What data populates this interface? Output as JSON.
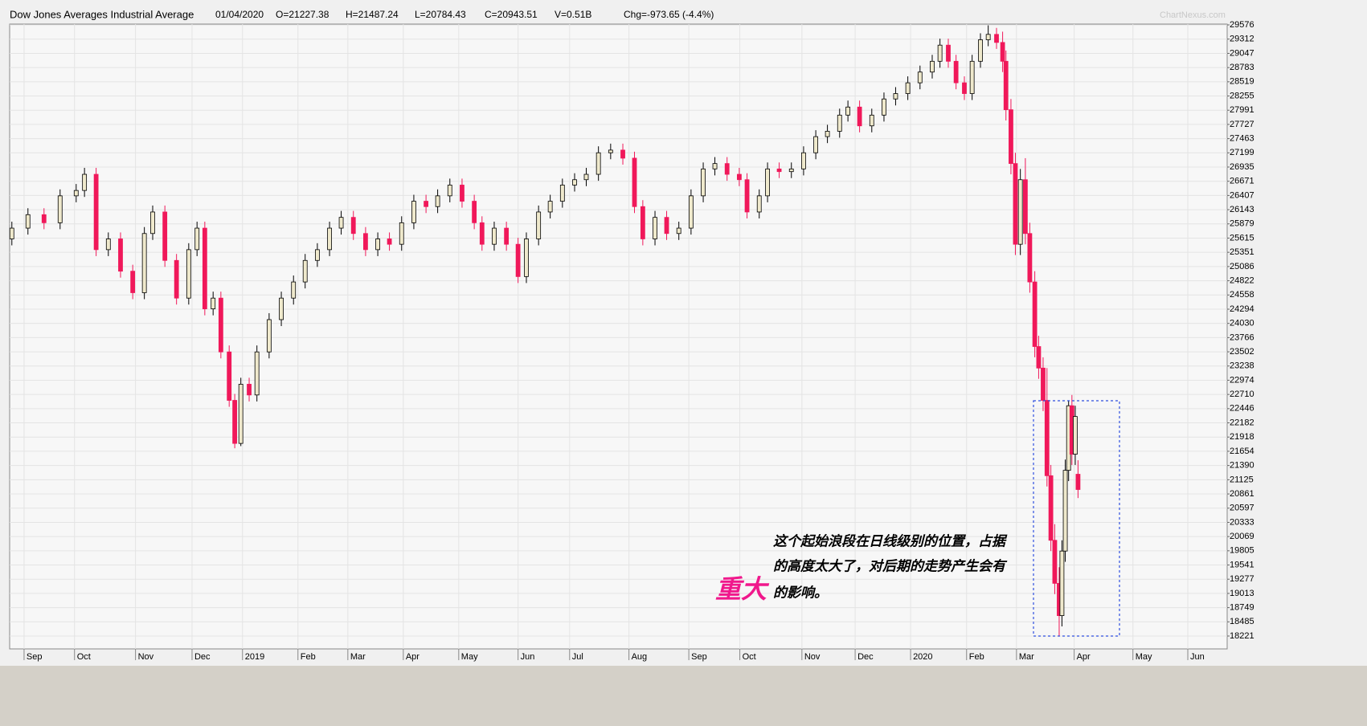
{
  "header": {
    "title": "Dow Jones Averages Industrial Average",
    "date": "01/04/2020",
    "open": "O=21227.38",
    "high": "H=21487.24",
    "low": "L=20784.43",
    "close": "C=20943.51",
    "volume": "V=0.51B",
    "change": "Chg=-973.65 (-4.4%)",
    "watermark": "ChartNexus.com"
  },
  "annotation": {
    "lines": [
      "这个起始浪段在日线级别的位置，占据",
      "的高度太大了，对后期的走势产生会有",
      "的影响。"
    ],
    "emphasis": "重大"
  },
  "chart_data": {
    "type": "candlestick",
    "up_color": "#efe9cc",
    "down_color": "#f0185a",
    "grid": true,
    "xlim": [
      -0.26,
      21.7
    ],
    "ylim": [
      17982,
      29591
    ],
    "xticks": [
      {
        "value": 0,
        "label": "Sep"
      },
      {
        "value": 0.91,
        "label": "Oct"
      },
      {
        "value": 2.01,
        "label": "Nov"
      },
      {
        "value": 3.03,
        "label": "Dec"
      },
      {
        "value": 3.94,
        "label": "2019"
      },
      {
        "value": 4.94,
        "label": "Feb"
      },
      {
        "value": 5.84,
        "label": "Mar"
      },
      {
        "value": 6.84,
        "label": "Apr"
      },
      {
        "value": 7.84,
        "label": "May"
      },
      {
        "value": 8.91,
        "label": "Jun"
      },
      {
        "value": 9.84,
        "label": "Jul"
      },
      {
        "value": 10.91,
        "label": "Aug"
      },
      {
        "value": 11.99,
        "label": "Sep"
      },
      {
        "value": 12.91,
        "label": "Oct"
      },
      {
        "value": 14.03,
        "label": "Nov"
      },
      {
        "value": 14.99,
        "label": "Dec"
      },
      {
        "value": 15.99,
        "label": "2020"
      },
      {
        "value": 17.0,
        "label": "Feb"
      },
      {
        "value": 17.9,
        "label": "Mar"
      },
      {
        "value": 18.94,
        "label": "Apr"
      },
      {
        "value": 20.0,
        "label": "May"
      },
      {
        "value": 20.99,
        "label": "Jun"
      }
    ],
    "yticks": [
      29576,
      29312,
      29047,
      28783,
      28519,
      28255,
      27991,
      27727,
      27463,
      27199,
      26935,
      26671,
      26407,
      26143,
      25879,
      25615,
      25351,
      25086,
      24822,
      24558,
      24294,
      24030,
      23766,
      23502,
      23238,
      22974,
      22710,
      22446,
      22182,
      21918,
      21654,
      21390,
      21125,
      20861,
      20597,
      20333,
      20069,
      19805,
      19541,
      19277,
      19013,
      18749,
      18485,
      18221
    ],
    "x": [
      -0.22,
      0.07,
      0.36,
      0.65,
      0.94,
      1.09,
      1.3,
      1.52,
      1.74,
      1.96,
      2.17,
      2.32,
      2.54,
      2.75,
      2.97,
      3.12,
      3.26,
      3.41,
      3.55,
      3.7,
      3.8,
      3.91,
      4.06,
      4.2,
      4.42,
      4.64,
      4.86,
      5.07,
      5.29,
      5.51,
      5.72,
      5.94,
      6.16,
      6.38,
      6.59,
      6.81,
      7.03,
      7.25,
      7.46,
      7.68,
      7.9,
      8.12,
      8.26,
      8.48,
      8.7,
      8.91,
      9.06,
      9.28,
      9.49,
      9.71,
      9.93,
      10.14,
      10.36,
      10.58,
      10.8,
      11.01,
      11.16,
      11.38,
      11.59,
      11.81,
      12.03,
      12.25,
      12.46,
      12.68,
      12.9,
      13.04,
      13.26,
      13.41,
      13.62,
      13.84,
      14.06,
      14.28,
      14.49,
      14.71,
      14.86,
      15.07,
      15.29,
      15.51,
      15.72,
      15.94,
      16.16,
      16.38,
      16.52,
      16.67,
      16.81,
      16.96,
      17.1,
      17.25,
      17.39,
      17.54,
      17.65,
      17.71,
      17.8,
      17.88,
      17.97,
      18.06,
      18.14,
      18.23,
      18.3,
      18.38,
      18.45,
      18.52,
      18.59,
      18.67,
      18.72,
      18.78,
      18.84,
      18.9,
      18.96,
      19.01
    ],
    "open": [
      25600,
      25800,
      26050,
      25900,
      26400,
      26500,
      26800,
      25400,
      25600,
      25000,
      24600,
      25700,
      26100,
      25200,
      24500,
      25400,
      25800,
      24300,
      24500,
      23500,
      22600,
      21800,
      22900,
      22700,
      23500,
      24100,
      24500,
      24800,
      25200,
      25400,
      25800,
      26000,
      25700,
      25400,
      25600,
      25500,
      25900,
      26300,
      26200,
      26400,
      26600,
      26300,
      25900,
      25500,
      25800,
      25500,
      24900,
      25600,
      26100,
      26300,
      26600,
      26700,
      26800,
      27200,
      27250,
      27100,
      26200,
      25600,
      26000,
      25700,
      25800,
      26400,
      26900,
      27000,
      26800,
      26700,
      26100,
      26400,
      26900,
      26850,
      26900,
      27200,
      27500,
      27600,
      27900,
      28050,
      27700,
      27900,
      28200,
      28300,
      28500,
      28700,
      28900,
      29200,
      28900,
      28500,
      28300,
      28900,
      29300,
      29400,
      29250,
      28900,
      28000,
      27000,
      25500,
      26700,
      25700,
      24800,
      23600,
      23200,
      22600,
      21200,
      20000,
      19200,
      18600,
      19800,
      21300,
      22500,
      21600,
      21227.38
    ],
    "high": [
      25920,
      26170,
      26170,
      26520,
      26620,
      26920,
      26920,
      25720,
      25720,
      25120,
      25820,
      26220,
      26220,
      25320,
      25520,
      25920,
      25920,
      24620,
      24620,
      23620,
      22720,
      23020,
      23020,
      23620,
      24220,
      24620,
      24920,
      25320,
      25520,
      25920,
      26120,
      26120,
      25820,
      25720,
      25720,
      26020,
      26420,
      26420,
      26520,
      26720,
      26720,
      26420,
      26020,
      25920,
      25920,
      25620,
      25720,
      26220,
      26420,
      26720,
      26820,
      26920,
      27320,
      27370,
      27370,
      27220,
      26320,
      26120,
      26120,
      25920,
      26520,
      27020,
      27120,
      27120,
      26920,
      26820,
      26520,
      27020,
      27020,
      27020,
      27320,
      27620,
      27720,
      28020,
      28170,
      28170,
      28020,
      28320,
      28420,
      28620,
      28820,
      29020,
      29320,
      29320,
      29020,
      28620,
      29020,
      29420,
      29568,
      29520,
      29450,
      29100,
      28200,
      27200,
      26900,
      27100,
      25900,
      25000,
      23800,
      23400,
      23200,
      21400,
      20300,
      19500,
      20000,
      21500,
      22600,
      22700,
      22500,
      21487.24
    ],
    "low": [
      25480,
      25680,
      25780,
      25780,
      26280,
      26380,
      25280,
      25280,
      24880,
      24480,
      24480,
      25580,
      25080,
      24380,
      24380,
      25280,
      24180,
      24180,
      23380,
      22480,
      21710,
      21750,
      22580,
      22580,
      23380,
      23980,
      24380,
      24680,
      25080,
      25280,
      25680,
      25580,
      25280,
      25280,
      25380,
      25380,
      25780,
      26080,
      26080,
      26280,
      26180,
      25780,
      25380,
      25380,
      25380,
      24780,
      24780,
      25480,
      25980,
      26180,
      26480,
      26580,
      26680,
      27080,
      26980,
      26080,
      25480,
      25480,
      25580,
      25580,
      25680,
      26280,
      26780,
      26680,
      26580,
      25980,
      25980,
      26280,
      26730,
      26730,
      26780,
      27080,
      27380,
      27480,
      27780,
      27580,
      27580,
      27780,
      28080,
      28180,
      28380,
      28580,
      28780,
      28780,
      28380,
      28180,
      28180,
      28780,
      29180,
      29130,
      28700,
      27800,
      26800,
      25300,
      25300,
      25500,
      24600,
      23400,
      23000,
      22400,
      21000,
      19800,
      19000,
      18213,
      18400,
      19600,
      21100,
      21400,
      21400,
      20784.43
    ],
    "close": [
      25800,
      26050,
      25900,
      26400,
      26500,
      26800,
      25400,
      25600,
      25000,
      24600,
      25700,
      26100,
      25200,
      24500,
      25400,
      25800,
      24300,
      24500,
      23500,
      22600,
      21800,
      22900,
      22700,
      23500,
      24100,
      24500,
      24800,
      25200,
      25400,
      25800,
      26000,
      25700,
      25400,
      25600,
      25500,
      25900,
      26300,
      26200,
      26400,
      26600,
      26300,
      25900,
      25500,
      25800,
      25500,
      24900,
      25600,
      26100,
      26300,
      26600,
      26700,
      26800,
      27200,
      27250,
      27100,
      26200,
      25600,
      26000,
      25700,
      25800,
      26400,
      26900,
      27000,
      26800,
      26700,
      26100,
      26400,
      26900,
      26850,
      26900,
      27200,
      27500,
      27600,
      27900,
      28050,
      27700,
      27900,
      28200,
      28300,
      28500,
      28700,
      28900,
      29200,
      28900,
      28500,
      28300,
      28900,
      29300,
      29400,
      29250,
      28900,
      28000,
      27000,
      25500,
      26700,
      25700,
      24800,
      23600,
      23200,
      22600,
      21200,
      20000,
      19200,
      18600,
      19800,
      21300,
      22500,
      21600,
      22300,
      20943.51
    ]
  }
}
